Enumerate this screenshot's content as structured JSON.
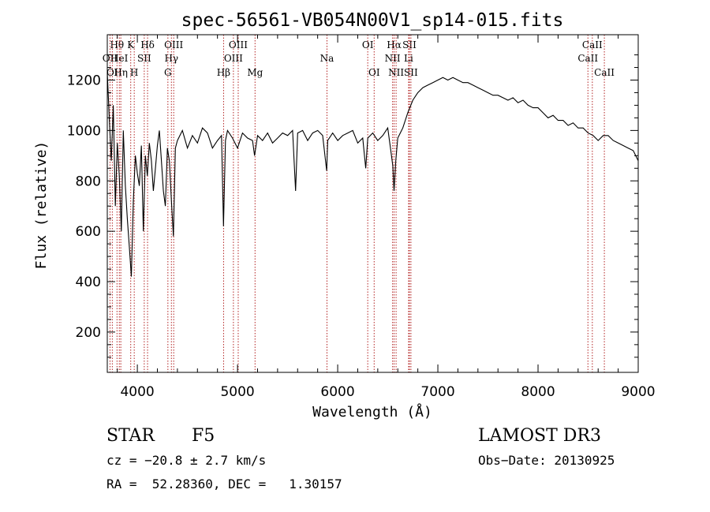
{
  "chart_data": {
    "type": "line",
    "title": "spec-56561-VB054N00V1_sp14-015.fits",
    "xlabel": "Wavelength (Å)",
    "ylabel": "Flux (relative)",
    "xlim": [
      3700,
      9000
    ],
    "ylim": [
      40,
      1380
    ],
    "x_ticks": [
      4000,
      5000,
      6000,
      7000,
      8000,
      9000
    ],
    "x_tick_labels": [
      "4000",
      "5000",
      "6000",
      "7000",
      "8000",
      "9000"
    ],
    "y_ticks": [
      200,
      400,
      600,
      800,
      1000,
      1200
    ],
    "y_tick_labels": [
      "200",
      "400",
      "600",
      "800",
      "1000",
      "1200"
    ],
    "series": [
      {
        "name": "flux",
        "x": [
          3700,
          3720,
          3740,
          3760,
          3780,
          3800,
          3820,
          3840,
          3860,
          3880,
          3900,
          3920,
          3940,
          3960,
          3980,
          4000,
          4020,
          4040,
          4060,
          4080,
          4100,
          4120,
          4140,
          4160,
          4180,
          4200,
          4220,
          4240,
          4260,
          4280,
          4300,
          4320,
          4340,
          4360,
          4380,
          4400,
          4450,
          4500,
          4550,
          4600,
          4650,
          4700,
          4750,
          4800,
          4840,
          4860,
          4880,
          4900,
          4950,
          5000,
          5050,
          5100,
          5150,
          5170,
          5200,
          5250,
          5300,
          5350,
          5400,
          5450,
          5500,
          5550,
          5580,
          5600,
          5650,
          5700,
          5750,
          5800,
          5850,
          5890,
          5900,
          5950,
          6000,
          6050,
          6100,
          6150,
          6200,
          6250,
          6280,
          6300,
          6350,
          6400,
          6450,
          6500,
          6530,
          6550,
          6563,
          6580,
          6600,
          6650,
          6700,
          6750,
          6800,
          6850,
          6900,
          6950,
          7000,
          7050,
          7100,
          7150,
          7200,
          7250,
          7300,
          7350,
          7400,
          7450,
          7500,
          7550,
          7600,
          7650,
          7700,
          7750,
          7800,
          7850,
          7900,
          7950,
          8000,
          8050,
          8100,
          8150,
          8200,
          8250,
          8300,
          8350,
          8400,
          8450,
          8500,
          8550,
          8600,
          8650,
          8700,
          8750,
          8800,
          8850,
          8900,
          8950,
          9000
        ],
        "values": [
          1230,
          1050,
          880,
          1100,
          700,
          950,
          820,
          600,
          1000,
          780,
          650,
          540,
          420,
          720,
          900,
          830,
          780,
          940,
          600,
          900,
          820,
          950,
          880,
          760,
          850,
          940,
          1000,
          880,
          760,
          700,
          930,
          880,
          720,
          580,
          930,
          960,
          1000,
          930,
          980,
          950,
          1010,
          990,
          930,
          960,
          980,
          620,
          960,
          1000,
          970,
          930,
          990,
          970,
          960,
          900,
          980,
          960,
          990,
          950,
          970,
          990,
          980,
          1000,
          760,
          990,
          1000,
          960,
          990,
          1000,
          980,
          840,
          960,
          990,
          960,
          980,
          990,
          1000,
          950,
          970,
          850,
          970,
          990,
          960,
          980,
          1010,
          920,
          860,
          760,
          880,
          970,
          1010,
          1070,
          1120,
          1150,
          1170,
          1180,
          1190,
          1200,
          1210,
          1200,
          1210,
          1200,
          1190,
          1190,
          1180,
          1170,
          1160,
          1150,
          1140,
          1140,
          1130,
          1120,
          1130,
          1110,
          1120,
          1100,
          1090,
          1090,
          1070,
          1050,
          1060,
          1040,
          1040,
          1020,
          1030,
          1010,
          1010,
          990,
          980,
          960,
          980,
          980,
          960,
          950,
          940,
          930,
          920,
          880
        ]
      }
    ],
    "lines": [
      {
        "label": "Hθ",
        "x": 3797,
        "row": 1
      },
      {
        "label": "OII",
        "x": 3727,
        "row": 2
      },
      {
        "label": "HeI",
        "x": 3820,
        "row": 2
      },
      {
        "label": "OI",
        "x": 3750,
        "row": 3
      },
      {
        "label": "Hη",
        "x": 3835,
        "row": 3
      },
      {
        "label": "K",
        "x": 3934,
        "row": 1
      },
      {
        "label": "SII",
        "x": 4069,
        "row": 2
      },
      {
        "label": "H",
        "x": 3969,
        "row": 3
      },
      {
        "label": "Hδ",
        "x": 4102,
        "row": 1
      },
      {
        "label": "OIII",
        "x": 4363,
        "row": 1
      },
      {
        "label": "Hγ",
        "x": 4340,
        "row": 2
      },
      {
        "label": "G",
        "x": 4305,
        "row": 3
      },
      {
        "label": "Hβ",
        "x": 4861,
        "row": 3
      },
      {
        "label": "OIII",
        "x": 5007,
        "row": 1
      },
      {
        "label": "OIII",
        "x": 4959,
        "row": 2
      },
      {
        "label": "Mg",
        "x": 5175,
        "row": 3
      },
      {
        "label": "Na",
        "x": 5893,
        "row": 2
      },
      {
        "label": "OI",
        "x": 6300,
        "row": 1
      },
      {
        "label": "OI",
        "x": 6364,
        "row": 3
      },
      {
        "label": "Hα",
        "x": 6563,
        "row": 1
      },
      {
        "label": "NII",
        "x": 6548,
        "row": 2
      },
      {
        "label": "NII",
        "x": 6583,
        "row": 3
      },
      {
        "label": "SII",
        "x": 6716,
        "row": 1
      },
      {
        "label": "Li",
        "x": 6708,
        "row": 2
      },
      {
        "label": "SII",
        "x": 6731,
        "row": 3
      },
      {
        "label": "CaII",
        "x": 8542,
        "row": 1
      },
      {
        "label": "CaII",
        "x": 8498,
        "row": 2
      },
      {
        "label": "CaII",
        "x": 8662,
        "row": 3
      }
    ],
    "grid": false,
    "line_color": "#000000",
    "marker_color": "#b22222"
  },
  "info": {
    "class_label": "STAR",
    "subclass": "F5",
    "survey": "LAMOST DR3",
    "cz": "cz = −20.8 ± 2.7 km/s",
    "obs_date": "Obs−Date: 20130925",
    "coords": "RA =  52.28360, DEC =   1.30157"
  }
}
